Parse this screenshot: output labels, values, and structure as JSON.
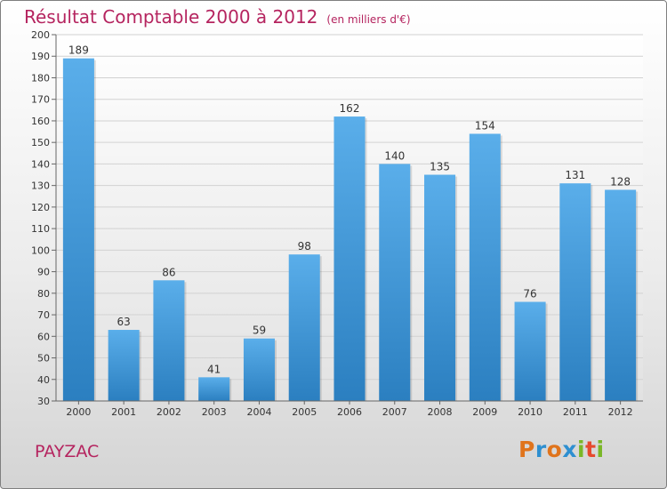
{
  "header": {
    "title": "Résultat Comptable 2000 à 2012",
    "subtitle": "(en milliers d'€)"
  },
  "footer": {
    "place": "PAYZAC",
    "brand": "Proxiti"
  },
  "colors": {
    "title": "#b5245f",
    "bar_top": "#5aaeea",
    "bar_bottom": "#2b7fc0",
    "brand_letters": [
      "#e0741c",
      "#2e8fd0",
      "#e0741c",
      "#2e8fd0",
      "#7ab727",
      "#e64a2e",
      "#7ab727"
    ]
  },
  "chart_data": {
    "type": "bar",
    "title": "Résultat Comptable 2000 à 2012",
    "xlabel": "",
    "ylabel": "",
    "categories": [
      "2000",
      "2001",
      "2002",
      "2003",
      "2004",
      "2005",
      "2006",
      "2007",
      "2008",
      "2009",
      "2010",
      "2011",
      "2012"
    ],
    "values": [
      189,
      63,
      86,
      41,
      59,
      98,
      162,
      140,
      135,
      154,
      76,
      131,
      128
    ],
    "ylim": [
      30,
      200
    ],
    "ytick_step": 10,
    "grid": true,
    "value_labels": true
  }
}
